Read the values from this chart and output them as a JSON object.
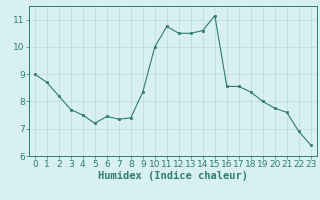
{
  "x": [
    0,
    1,
    2,
    3,
    4,
    5,
    6,
    7,
    8,
    9,
    10,
    11,
    12,
    13,
    14,
    15,
    16,
    17,
    18,
    19,
    20,
    21,
    22,
    23
  ],
  "y": [
    9.0,
    8.7,
    8.2,
    7.7,
    7.5,
    7.2,
    7.45,
    7.35,
    7.4,
    8.35,
    10.0,
    10.75,
    10.5,
    10.5,
    10.6,
    11.15,
    8.55,
    8.55,
    8.35,
    8.0,
    7.75,
    7.6,
    6.9,
    6.4
  ],
  "xlabel": "Humidex (Indice chaleur)",
  "ylim": [
    6,
    11.5
  ],
  "xlim": [
    -0.5,
    23.5
  ],
  "yticks": [
    6,
    7,
    8,
    9,
    10,
    11
  ],
  "xticks": [
    0,
    1,
    2,
    3,
    4,
    5,
    6,
    7,
    8,
    9,
    10,
    11,
    12,
    13,
    14,
    15,
    16,
    17,
    18,
    19,
    20,
    21,
    22,
    23
  ],
  "line_color": "#2d7d6e",
  "marker_color": "#2d7d6e",
  "bg_color": "#d9f0f0",
  "grid_color": "#c0d8d8",
  "tick_color": "#2d7d6e",
  "label_color": "#2d7d6e",
  "font_size_axis": 6.5,
  "font_size_label": 7.5
}
